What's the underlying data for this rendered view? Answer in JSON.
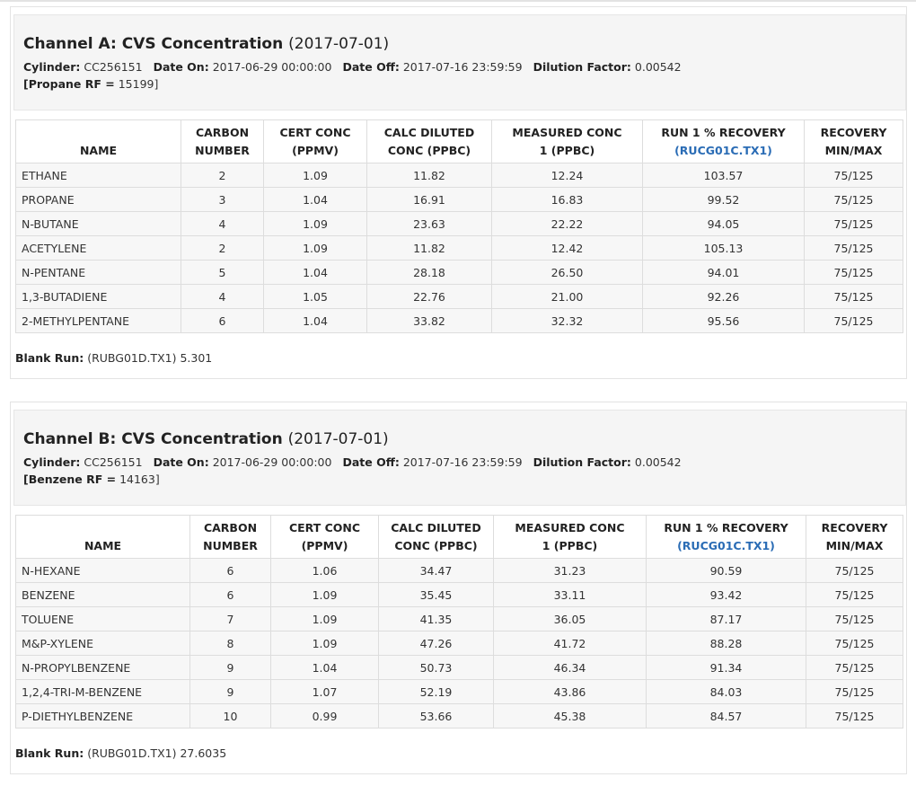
{
  "panels": [
    {
      "title": "Channel A: CVS Concentration",
      "date": "(2017-07-01)",
      "fields": [
        {
          "label": "Cylinder:",
          "value": "CC256151"
        },
        {
          "label": "Date On:",
          "value": "2017-06-29 00:00:00"
        },
        {
          "label": "Date Off:",
          "value": "2017-07-16 23:59:59"
        },
        {
          "label": "Dilution Factor:",
          "value": "0.00542"
        }
      ],
      "rf": {
        "label": "[Propane RF =",
        "value": "15199]"
      },
      "table": {
        "columns": [
          [
            "NAME"
          ],
          [
            "CARBON",
            "NUMBER"
          ],
          [
            "CERT CONC",
            "(PPMV)"
          ],
          [
            "CALC DILUTED",
            "CONC (PPBC)"
          ],
          [
            "MEASURED CONC",
            "1 (PPBC)"
          ],
          [
            "RUN 1 % RECOVERY",
            "(RUCG01C.TX1)"
          ],
          [
            "RECOVERY",
            "MIN/MAX"
          ]
        ],
        "rows": [
          [
            "ETHANE",
            "2",
            "1.09",
            "11.82",
            "12.24",
            "103.57",
            "75/125"
          ],
          [
            "PROPANE",
            "3",
            "1.04",
            "16.91",
            "16.83",
            "99.52",
            "75/125"
          ],
          [
            "N-BUTANE",
            "4",
            "1.09",
            "23.63",
            "22.22",
            "94.05",
            "75/125"
          ],
          [
            "ACETYLENE",
            "2",
            "1.09",
            "11.82",
            "12.42",
            "105.13",
            "75/125"
          ],
          [
            "N-PENTANE",
            "5",
            "1.04",
            "28.18",
            "26.50",
            "94.01",
            "75/125"
          ],
          [
            "1,3-BUTADIENE",
            "4",
            "1.05",
            "22.76",
            "21.00",
            "92.26",
            "75/125"
          ],
          [
            "2-METHYLPENTANE",
            "6",
            "1.04",
            "33.82",
            "32.32",
            "95.56",
            "75/125"
          ]
        ]
      },
      "blank_run": {
        "label": "Blank Run:",
        "value": "(RUBG01D.TX1) 5.301"
      }
    },
    {
      "title": "Channel B: CVS Concentration",
      "date": "(2017-07-01)",
      "fields": [
        {
          "label": "Cylinder:",
          "value": "CC256151"
        },
        {
          "label": "Date On:",
          "value": "2017-06-29 00:00:00"
        },
        {
          "label": "Date Off:",
          "value": "2017-07-16 23:59:59"
        },
        {
          "label": "Dilution Factor:",
          "value": "0.00542"
        }
      ],
      "rf": {
        "label": "[Benzene RF =",
        "value": "14163]"
      },
      "table": {
        "columns": [
          [
            "NAME"
          ],
          [
            "CARBON",
            "NUMBER"
          ],
          [
            "CERT CONC",
            "(PPMV)"
          ],
          [
            "CALC DILUTED",
            "CONC (PPBC)"
          ],
          [
            "MEASURED CONC",
            "1 (PPBC)"
          ],
          [
            "RUN 1 % RECOVERY",
            "(RUCG01C.TX1)"
          ],
          [
            "RECOVERY",
            "MIN/MAX"
          ]
        ],
        "rows": [
          [
            "N-HEXANE",
            "6",
            "1.06",
            "34.47",
            "31.23",
            "90.59",
            "75/125"
          ],
          [
            "BENZENE",
            "6",
            "1.09",
            "35.45",
            "33.11",
            "93.42",
            "75/125"
          ],
          [
            "TOLUENE",
            "7",
            "1.09",
            "41.35",
            "36.05",
            "87.17",
            "75/125"
          ],
          [
            "M&P-XYLENE",
            "8",
            "1.09",
            "47.26",
            "41.72",
            "88.28",
            "75/125"
          ],
          [
            "N-PROPYLBENZENE",
            "9",
            "1.04",
            "50.73",
            "46.34",
            "91.34",
            "75/125"
          ],
          [
            "1,2,4-TRI-M-BENZENE",
            "9",
            "1.07",
            "52.19",
            "43.86",
            "84.03",
            "75/125"
          ],
          [
            "P-DIETHYLBENZENE",
            "10",
            "0.99",
            "53.66",
            "45.38",
            "84.57",
            "75/125"
          ]
        ]
      },
      "blank_run": {
        "label": "Blank Run:",
        "value": "(RUBG01D.TX1) 27.6035"
      }
    }
  ]
}
